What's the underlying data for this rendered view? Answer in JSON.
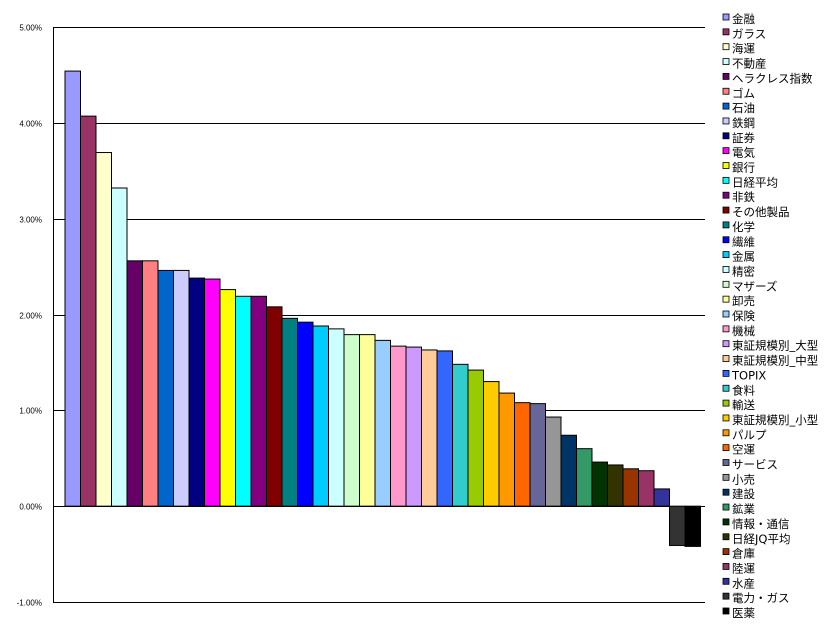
{
  "chart_data": {
    "type": "bar",
    "title": "",
    "xlabel": "",
    "ylabel": "",
    "ylim": [
      -1,
      5
    ],
    "y_unit": "%",
    "y_ticks": [
      "5.00%",
      "4.00%",
      "3.00%",
      "2.00%",
      "1.00%",
      "0.00%",
      "-1.00%"
    ],
    "grid": true,
    "legend_position": "right",
    "categories": [
      "金融",
      "ガラス",
      "海運",
      "不動産",
      "ヘラクレス指数",
      "ゴム",
      "石油",
      "鉄鋼",
      "証券",
      "電気",
      "銀行",
      "日経平均",
      "非鉄",
      "その他製品",
      "化学",
      "繊維",
      "金属",
      "精密",
      "マザーズ",
      "卸売",
      "保険",
      "機械",
      "東証規模別_大型",
      "東証規模別_中型",
      "TOPIX",
      "食料",
      "輸送",
      "東証規模別_小型",
      "パルプ",
      "空運",
      "サービス",
      "小売",
      "建設",
      "鉱業",
      "情報・通信",
      "日経JQ平均",
      "倉庫",
      "陸運",
      "水産",
      "電力・ガス",
      "医薬"
    ],
    "values": [
      4.54,
      4.07,
      3.69,
      3.32,
      2.56,
      2.56,
      2.46,
      2.46,
      2.38,
      2.37,
      2.26,
      2.19,
      2.19,
      2.08,
      1.96,
      1.92,
      1.88,
      1.85,
      1.79,
      1.79,
      1.73,
      1.67,
      1.66,
      1.63,
      1.62,
      1.48,
      1.42,
      1.3,
      1.18,
      1.08,
      1.07,
      0.93,
      0.74,
      0.6,
      0.46,
      0.43,
      0.39,
      0.37,
      0.18,
      -0.41,
      -0.42
    ],
    "colors": [
      "#9999FF",
      "#993366",
      "#FFFFCC",
      "#CCFFFF",
      "#660066",
      "#FF8080",
      "#0066CC",
      "#CCCCFF",
      "#000080",
      "#FF00FF",
      "#FFFF00",
      "#00FFFF",
      "#800080",
      "#800000",
      "#008080",
      "#0000FF",
      "#00CCFF",
      "#CCFFFF",
      "#CCFFCC",
      "#FFFF99",
      "#99CCFF",
      "#FF99CC",
      "#CC99FF",
      "#FFCC99",
      "#3366FF",
      "#33CCCC",
      "#99CC00",
      "#FFCC00",
      "#FF9900",
      "#FF6600",
      "#666699",
      "#969696",
      "#003366",
      "#339966",
      "#003300",
      "#333300",
      "#993300",
      "#993366",
      "#333399",
      "#333333",
      "#000000"
    ]
  }
}
